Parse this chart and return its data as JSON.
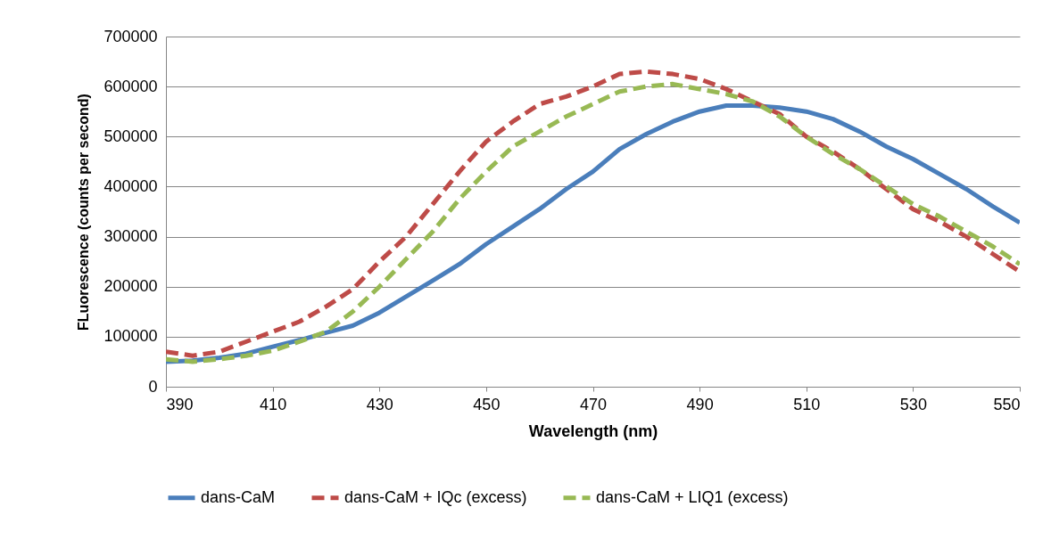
{
  "chart_data": {
    "type": "line",
    "xlabel": "Wavelength (nm)",
    "ylabel": "FLuorescence (counts per second)",
    "x": [
      390,
      395,
      400,
      405,
      410,
      415,
      420,
      425,
      430,
      435,
      440,
      445,
      450,
      455,
      460,
      465,
      470,
      475,
      480,
      485,
      490,
      495,
      500,
      505,
      510,
      515,
      520,
      525,
      530,
      535,
      540,
      545,
      550
    ],
    "xlim": [
      390,
      550
    ],
    "xticks": [
      390,
      410,
      430,
      450,
      470,
      490,
      510,
      530,
      550
    ],
    "ylim": [
      0,
      700000
    ],
    "yticks": [
      0,
      100000,
      200000,
      300000,
      400000,
      500000,
      600000,
      700000
    ],
    "grid": "y",
    "legend": "bottom",
    "marker": "none",
    "series": [
      {
        "name": "dans-CaM",
        "color": "#4a7ebb",
        "line_style": "solid",
        "values": [
          50000,
          52000,
          58000,
          66000,
          80000,
          93000,
          108000,
          122000,
          148000,
          180000,
          212000,
          245000,
          285000,
          320000,
          355000,
          395000,
          430000,
          475000,
          505000,
          530000,
          550000,
          562000,
          562000,
          558000,
          550000,
          535000,
          510000,
          480000,
          455000,
          425000,
          395000,
          360000,
          328000
        ]
      },
      {
        "name": "dans-CaM + IQc (excess)",
        "color": "#be4b48",
        "line_style": "dashed",
        "values": [
          70000,
          62000,
          70000,
          90000,
          110000,
          130000,
          160000,
          195000,
          250000,
          300000,
          365000,
          430000,
          490000,
          530000,
          565000,
          580000,
          600000,
          625000,
          630000,
          625000,
          615000,
          595000,
          570000,
          545000,
          500000,
          470000,
          435000,
          395000,
          355000,
          330000,
          300000,
          265000,
          230000
        ]
      },
      {
        "name": "dans-CaM + LIQ1 (excess)",
        "color": "#98b954",
        "line_style": "dashed",
        "values": [
          55000,
          50000,
          55000,
          62000,
          72000,
          90000,
          110000,
          150000,
          200000,
          255000,
          310000,
          375000,
          430000,
          480000,
          510000,
          540000,
          565000,
          590000,
          600000,
          605000,
          595000,
          585000,
          570000,
          540000,
          500000,
          465000,
          435000,
          400000,
          365000,
          340000,
          310000,
          280000,
          245000
        ]
      }
    ]
  }
}
